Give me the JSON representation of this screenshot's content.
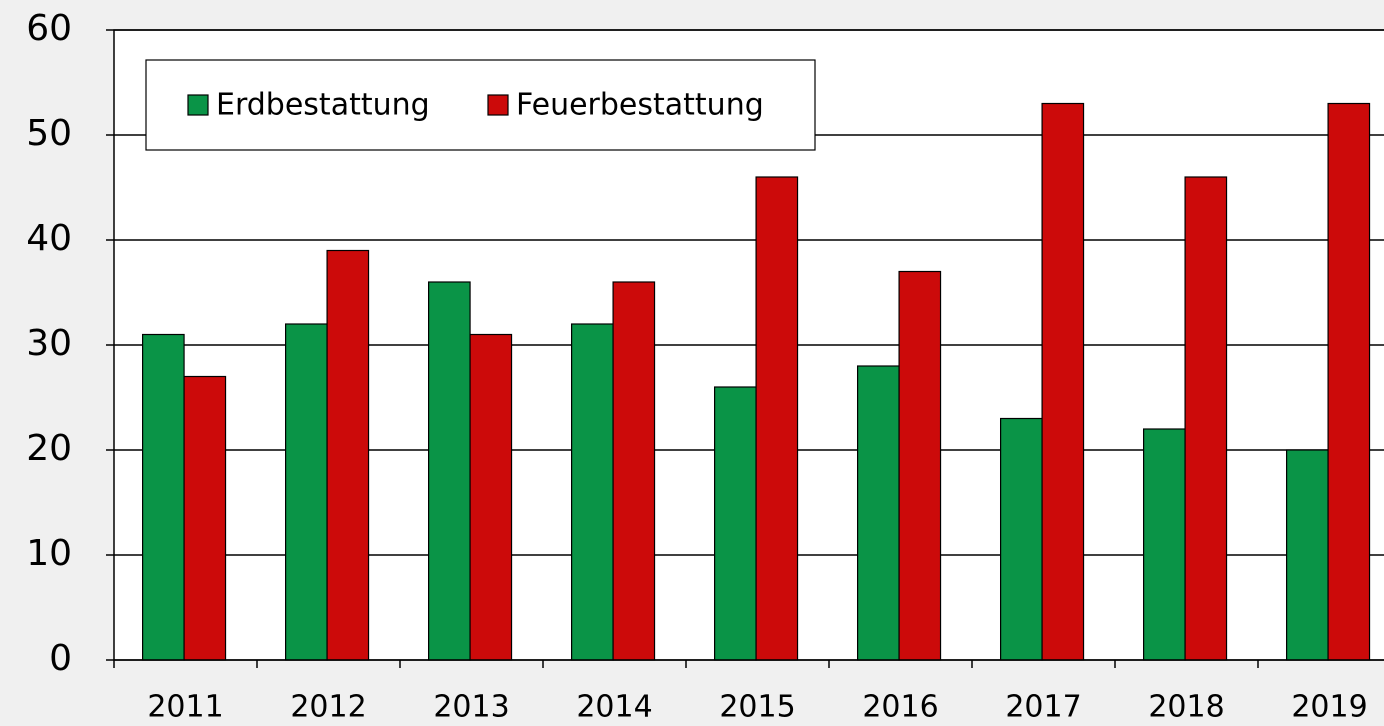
{
  "chart_data": {
    "type": "bar",
    "categories": [
      "2011",
      "2012",
      "2013",
      "2014",
      "2015",
      "2016",
      "2017",
      "2018",
      "2019"
    ],
    "series": [
      {
        "name": "Erdbestattung",
        "color": "#0a9447",
        "values": [
          31,
          32,
          36,
          32,
          26,
          28,
          23,
          22,
          20
        ]
      },
      {
        "name": "Feuerbestattung",
        "color": "#cc0a0a",
        "values": [
          27,
          39,
          31,
          36,
          46,
          37,
          53,
          46,
          53
        ]
      }
    ],
    "ylim": [
      0,
      60
    ],
    "yticks": [
      0,
      10,
      20,
      30,
      40,
      50,
      60
    ],
    "grid": true,
    "legend": "upper left"
  }
}
